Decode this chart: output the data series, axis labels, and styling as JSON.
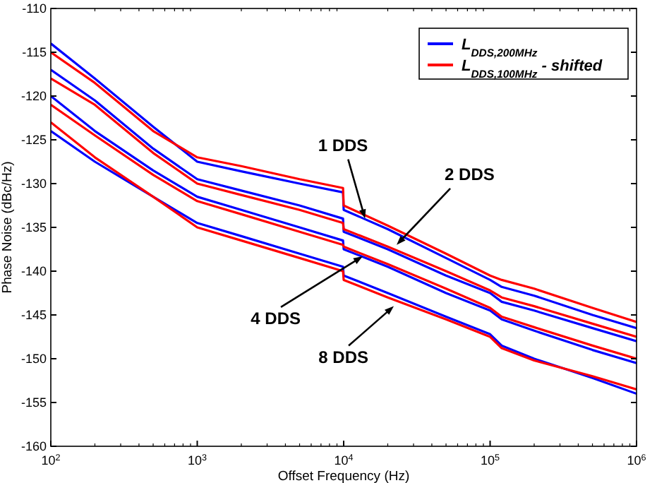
{
  "chart_data": {
    "type": "line",
    "xlabel": "Offset Frequency (Hz)",
    "ylabel": "Phase Noise (dBc/Hz)",
    "log": "x",
    "xlim": [
      100,
      1000000
    ],
    "xticks": [
      {
        "value": 100,
        "label": "10$^{2}$"
      },
      {
        "value": 1000,
        "label": "10$^{3}$"
      },
      {
        "value": 10000,
        "label": "10$^{4}$"
      },
      {
        "value": 100000,
        "label": "10$^{5}$"
      },
      {
        "value": 1000000,
        "label": "10$^{6}$"
      }
    ],
    "ylim": [
      -160,
      -110
    ],
    "yticks": [
      -160,
      -155,
      -150,
      -145,
      -140,
      -135,
      -130,
      -125,
      -120,
      -115,
      -110
    ],
    "grid": false,
    "legend": "top right",
    "marker": "none",
    "line_style": "solid",
    "x": [
      100,
      200,
      500,
      1000,
      2000,
      5000,
      9900,
      10000,
      20000,
      50000,
      100000,
      120000,
      200000,
      500000,
      1000000
    ],
    "series": [
      {
        "name": "L$_{DDS,200MHz}$",
        "color": "#0000ff",
        "values": [
          -114,
          -118,
          -123.5,
          -127.5,
          -128.6,
          -130,
          -131,
          -133,
          -135.2,
          -138.5,
          -141,
          -141.8,
          -142.8,
          -145,
          -146.5
        ]
      },
      {
        "name": "L$_{DDS,100MHz}$ - shifted",
        "color": "#ff0000",
        "values": [
          -115,
          -118.5,
          -124,
          -127,
          -128,
          -129.5,
          -130.5,
          -132.5,
          -134.8,
          -138,
          -140.5,
          -141,
          -142,
          -144.2,
          -145.8
        ]
      },
      {
        "color": "#0000ff",
        "values": [
          -117,
          -120.5,
          -126,
          -129.5,
          -130.8,
          -132.5,
          -134,
          -135.5,
          -137.5,
          -140.5,
          -142.5,
          -143.5,
          -144.5,
          -146.5,
          -148
        ]
      },
      {
        "color": "#ff0000",
        "values": [
          -118,
          -121,
          -126.5,
          -130,
          -131.3,
          -133,
          -134.5,
          -135.2,
          -137.2,
          -140,
          -142.2,
          -143,
          -144,
          -146,
          -147.5
        ]
      },
      {
        "color": "#0000ff",
        "values": [
          -120,
          -124,
          -128.5,
          -131.5,
          -133,
          -135,
          -136.5,
          -137.5,
          -139.5,
          -142.5,
          -144.5,
          -145.5,
          -146.8,
          -149,
          -150.5
        ]
      },
      {
        "color": "#ff0000",
        "values": [
          -121,
          -124.5,
          -129,
          -132,
          -133.5,
          -135.5,
          -137,
          -137.2,
          -139.2,
          -142,
          -144.2,
          -145.2,
          -146.4,
          -148.5,
          -150
        ]
      },
      {
        "color": "#0000ff",
        "values": [
          -124,
          -127.5,
          -131.5,
          -134.5,
          -136,
          -138,
          -139.5,
          -140.5,
          -142.5,
          -145.2,
          -147.2,
          -148.5,
          -150,
          -152.2,
          -154
        ]
      },
      {
        "color": "#ff0000",
        "values": [
          -123,
          -127,
          -131.5,
          -135,
          -136.5,
          -138.5,
          -140,
          -141,
          -143,
          -145.5,
          -147.5,
          -148.8,
          -150.2,
          -152,
          -153.5
        ]
      }
    ],
    "annotations": [
      {
        "text": "1 DDS",
        "x": 14000,
        "y": -134
      },
      {
        "text": "2 DDS",
        "x": 23000,
        "y": -137
      },
      {
        "text": "4 DDS",
        "x": 13500,
        "y": -138.3
      },
      {
        "text": "8 DDS",
        "x": 22000,
        "y": -144
      }
    ]
  }
}
